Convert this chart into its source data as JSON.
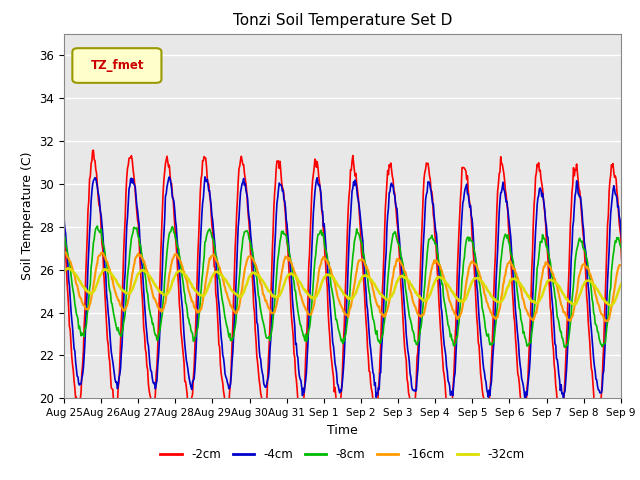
{
  "title": "Tonzi Soil Temperature Set D",
  "xlabel": "Time",
  "ylabel": "Soil Temperature (C)",
  "ylim": [
    20,
    37
  ],
  "yticks": [
    20,
    22,
    24,
    26,
    28,
    30,
    32,
    34,
    36
  ],
  "legend_label": "TZ_fmet",
  "series_labels": [
    "-2cm",
    "-4cm",
    "-8cm",
    "-16cm",
    "-32cm"
  ],
  "series_colors": [
    "#ff0000",
    "#0000cc",
    "#00bb00",
    "#ff9900",
    "#dddd00"
  ],
  "background_color": "#e8e8e8",
  "n_days": 16,
  "x_tick_labels": [
    "Aug 25",
    "Aug 26",
    "Aug 27",
    "Aug 28",
    "Aug 29",
    "Aug 30",
    "Aug 31",
    "Sep 1",
    "Sep 2",
    "Sep 3",
    "Sep 4",
    "Sep 5",
    "Sep 6",
    "Sep 7",
    "Sep 8",
    "Sep 9"
  ]
}
